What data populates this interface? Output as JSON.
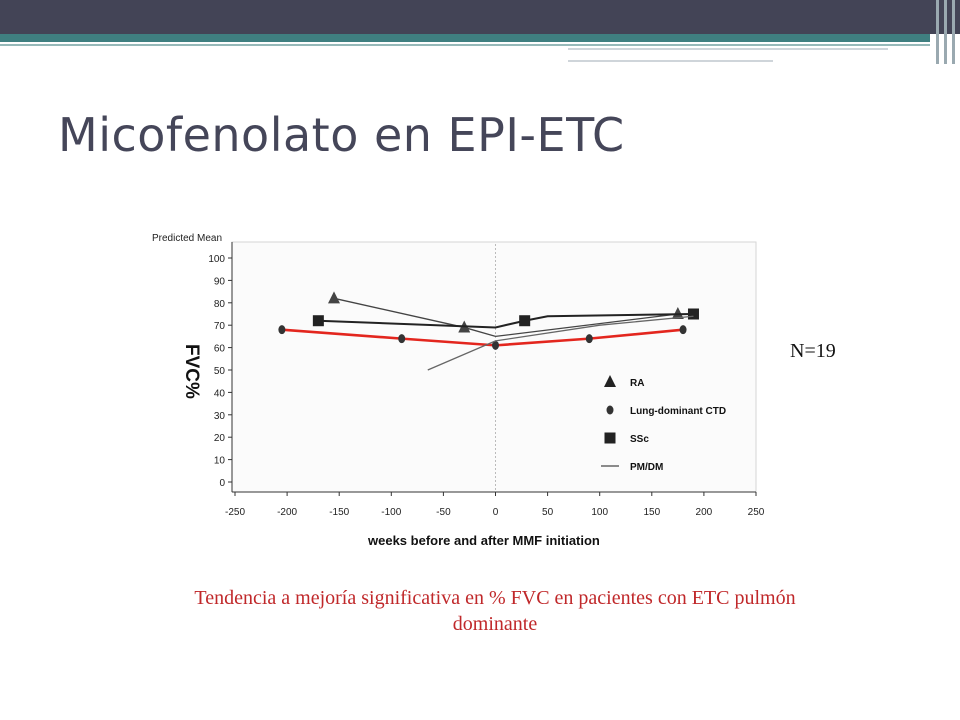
{
  "slide": {
    "title": "Micofenolato en EPI-ETC",
    "n_label": "N=19",
    "caption": "Tendencia a mejoría significativa en % FVC en pacientes con ETC pulmón dominante"
  },
  "colors": {
    "header_bar": "#434456",
    "accent_teal": "#3f7f80",
    "title_text": "#454659",
    "caption_text": "#c0282a",
    "highlight_series": "#e3261e"
  },
  "chart_data": {
    "type": "line",
    "top_label": "Predicted Mean",
    "ylabel": "FVC%",
    "xlabel": "weeks before and after MMF initiation",
    "xlim": [
      -250,
      250
    ],
    "ylim": [
      0,
      100
    ],
    "x_ticks": [
      "-250",
      "-200",
      "-150",
      "-100",
      "-50",
      "0",
      "50",
      "100",
      "150",
      "200",
      "250"
    ],
    "y_ticks": [
      "0",
      "10",
      "20",
      "30",
      "40",
      "50",
      "60",
      "70",
      "80",
      "90",
      "100"
    ],
    "reference_line_x": 0,
    "grid": false,
    "legend_position": "lower-right",
    "series": [
      {
        "name": "RA",
        "marker": "triangle",
        "color": "#444444",
        "x": [
          -155,
          -30,
          0,
          175
        ],
        "y": [
          82,
          69,
          65,
          75
        ]
      },
      {
        "name": "Lung-dominant CTD",
        "marker": "circle",
        "color": "#e3261e",
        "x": [
          -205,
          -90,
          0,
          90,
          180
        ],
        "y": [
          68,
          64,
          61,
          64,
          68
        ]
      },
      {
        "name": "SSc",
        "marker": "square",
        "color": "#222222",
        "x": [
          -170,
          0,
          28,
          50,
          190
        ],
        "y": [
          72,
          69,
          72,
          74,
          75
        ]
      },
      {
        "name": "PM/DM",
        "marker": "none",
        "color": "#666666",
        "x": [
          -65,
          0,
          100,
          190
        ],
        "y": [
          50,
          63,
          70,
          74
        ]
      }
    ]
  }
}
